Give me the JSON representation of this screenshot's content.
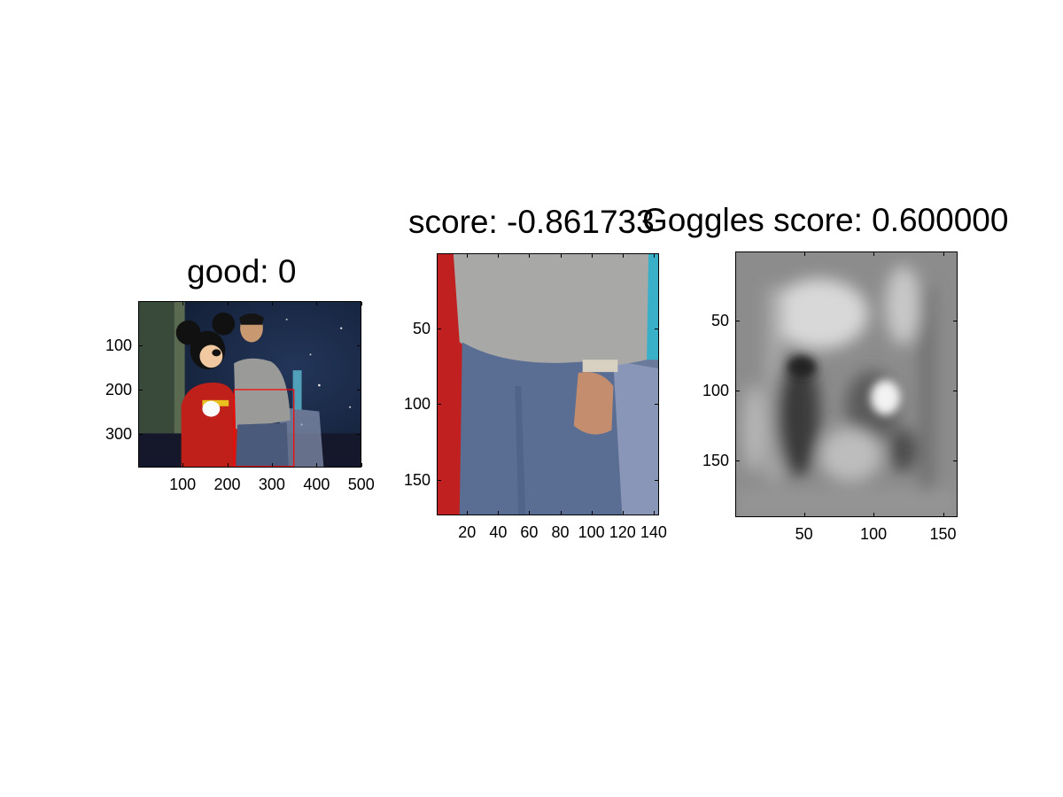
{
  "chart_data": [
    {
      "type": "image",
      "title": "good: 0",
      "x_ticks": [
        "100",
        "200",
        "300",
        "400",
        "500"
      ],
      "y_ticks": [
        "100",
        "200",
        "300"
      ],
      "xlim": [
        0.5,
        500.5
      ],
      "ylim": [
        0.5,
        375.5
      ],
      "detection_box": {
        "x1": 215,
        "y1": 200,
        "x2": 350,
        "y2": 375,
        "color": "#ff0000"
      },
      "colors": {
        "left_wall": "#3a4a3a",
        "background": "#1a2a45",
        "costume_red": "#c0201a",
        "sweater": "#9a9a98",
        "jeans": "#4a5a7a"
      }
    },
    {
      "type": "image",
      "title": "score: -0.861733",
      "x_ticks": [
        "20",
        "40",
        "60",
        "80",
        "100",
        "120",
        "140"
      ],
      "y_ticks": [
        "50",
        "100",
        "150"
      ],
      "xlim": [
        0.5,
        143.5
      ],
      "ylim": [
        0.5,
        173.5
      ],
      "colors": {
        "sweater": "#a8a8a6",
        "jeans": "#5a6e94",
        "left_edge": "#c02020",
        "right_edge": "#7a88aa"
      }
    },
    {
      "type": "heatmap",
      "title": "Goggles score: 0.600000",
      "x_ticks": [
        "50",
        "100",
        "150"
      ],
      "y_ticks": [
        "50",
        "100",
        "150"
      ],
      "xlim": [
        0.5,
        160.5
      ],
      "ylim": [
        0.5,
        190.5
      ],
      "colormap": "gray"
    }
  ]
}
